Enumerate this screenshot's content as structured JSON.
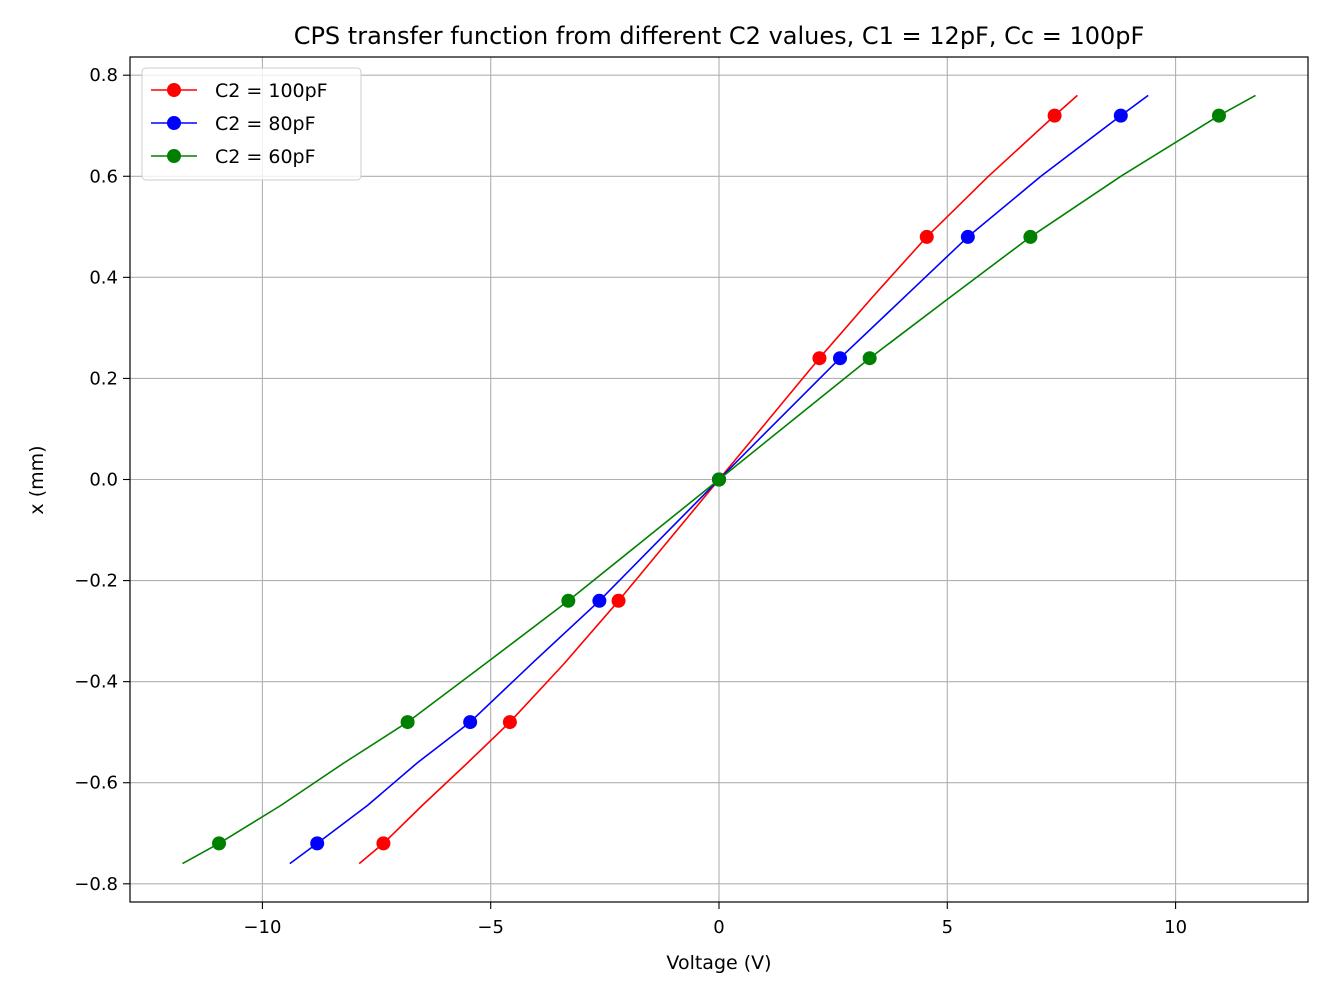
{
  "chart_data": {
    "type": "line",
    "title": "CPS transfer function from different C2 values, C1 = 12pF, Cc = 100pF",
    "xlabel": "Voltage (V)",
    "ylabel": "x (mm)",
    "xlim": [
      -12.9,
      12.9
    ],
    "ylim": [
      -0.836,
      0.836
    ],
    "xticks": [
      -10,
      -5,
      0,
      5,
      10
    ],
    "yticks": [
      -0.8,
      -0.6,
      -0.4,
      -0.2,
      0.0,
      0.2,
      0.4,
      0.6,
      0.8
    ],
    "xtick_labels": [
      "−10",
      "−5",
      "0",
      "5",
      "10"
    ],
    "ytick_labels": [
      "−0.8",
      "−0.6",
      "−0.4",
      "−0.2",
      "0.0",
      "0.2",
      "0.4",
      "0.6",
      "0.8"
    ],
    "grid": true,
    "legend_position": "top-left",
    "series": [
      {
        "name": "C2 = 100pF",
        "color": "#ff0000",
        "markers": {
          "x": [
            -7.35,
            -4.58,
            -2.2,
            0,
            2.2,
            4.55,
            7.35
          ],
          "y": [
            -0.72,
            -0.48,
            -0.24,
            0,
            0.24,
            0.48,
            0.72
          ]
        },
        "curve": {
          "x": [
            -7.88,
            -7.35,
            -6.5,
            -5.5,
            -4.58,
            -3.4,
            -2.2,
            -1.1,
            0,
            1.1,
            2.2,
            3.35,
            4.55,
            5.9,
            7.35,
            7.85
          ],
          "y": [
            -0.76,
            -0.72,
            -0.645,
            -0.56,
            -0.48,
            -0.365,
            -0.24,
            -0.12,
            0,
            0.12,
            0.24,
            0.36,
            0.48,
            0.6,
            0.72,
            0.76
          ]
        }
      },
      {
        "name": "C2 = 80pF",
        "color": "#0000ff",
        "markers": {
          "x": [
            -8.8,
            -5.45,
            -2.62,
            0,
            2.65,
            5.45,
            8.8
          ],
          "y": [
            -0.72,
            -0.48,
            -0.24,
            0,
            0.24,
            0.48,
            0.72
          ]
        },
        "curve": {
          "x": [
            -9.4,
            -8.8,
            -7.7,
            -6.6,
            -5.45,
            -4.05,
            -2.62,
            -1.31,
            0,
            1.32,
            2.65,
            4.05,
            5.45,
            7.05,
            8.8,
            9.4
          ],
          "y": [
            -0.76,
            -0.72,
            -0.645,
            -0.56,
            -0.48,
            -0.36,
            -0.24,
            -0.12,
            0,
            0.12,
            0.24,
            0.36,
            0.48,
            0.6,
            0.72,
            0.76
          ]
        }
      },
      {
        "name": "C2 = 60pF",
        "color": "#008000",
        "markers": {
          "x": [
            -10.95,
            -6.82,
            -3.3,
            0,
            3.3,
            6.82,
            10.95
          ],
          "y": [
            -0.72,
            -0.48,
            -0.24,
            0,
            0.24,
            0.48,
            0.72
          ]
        },
        "curve": {
          "x": [
            -11.75,
            -10.95,
            -9.6,
            -8.2,
            -6.82,
            -5.05,
            -3.3,
            -1.65,
            0,
            1.65,
            3.3,
            5.05,
            6.82,
            8.8,
            10.95,
            11.75
          ],
          "y": [
            -0.76,
            -0.72,
            -0.645,
            -0.56,
            -0.48,
            -0.36,
            -0.24,
            -0.12,
            0,
            0.12,
            0.24,
            0.36,
            0.48,
            0.6,
            0.72,
            0.76
          ]
        }
      }
    ]
  }
}
